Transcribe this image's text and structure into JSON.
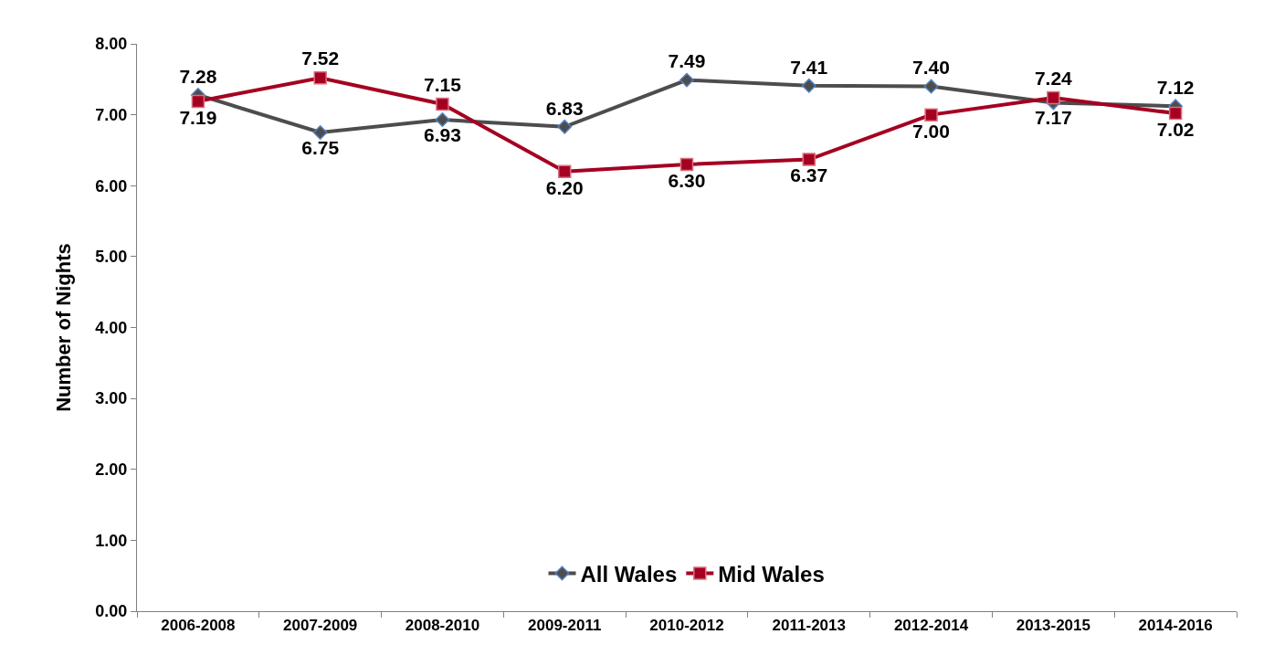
{
  "chart_data": {
    "type": "line",
    "ylabel": "Number of Nights",
    "categories": [
      "2006-2008",
      "2007-2009",
      "2008-2010",
      "2009-2011",
      "2010-2012",
      "2011-2013",
      "2012-2014",
      "2013-2015",
      "2014-2016"
    ],
    "series": [
      {
        "name": "All Wales",
        "color": "#4d4d4d",
        "marker": "diamond",
        "values": [
          7.28,
          6.75,
          6.93,
          6.83,
          7.49,
          7.41,
          7.4,
          7.17,
          7.12
        ],
        "value_labels": [
          "7.28",
          "6.75",
          "6.93",
          "6.83",
          "7.49",
          "7.41",
          "7.40",
          "7.17",
          "7.12"
        ]
      },
      {
        "name": "Mid Wales",
        "color": "#a50021",
        "marker": "square",
        "values": [
          7.19,
          7.52,
          7.15,
          6.2,
          6.3,
          6.37,
          7.0,
          7.24,
          7.02
        ],
        "value_labels": [
          "7.19",
          "7.52",
          "7.15",
          "6.20",
          "6.30",
          "6.37",
          "7.00",
          "7.24",
          "7.02"
        ]
      }
    ],
    "ylim": [
      0,
      8
    ],
    "yticks": [
      {
        "value": 0,
        "label": "0.00"
      },
      {
        "value": 1,
        "label": "1.00"
      },
      {
        "value": 2,
        "label": "2.00"
      },
      {
        "value": 3,
        "label": "3.00"
      },
      {
        "value": 4,
        "label": "4.00"
      },
      {
        "value": 5,
        "label": "5.00"
      },
      {
        "value": 6,
        "label": "6.00"
      },
      {
        "value": 7,
        "label": "7.00"
      },
      {
        "value": 8,
        "label": "8.00"
      }
    ],
    "legend": "bottom",
    "line_style": "solid"
  }
}
